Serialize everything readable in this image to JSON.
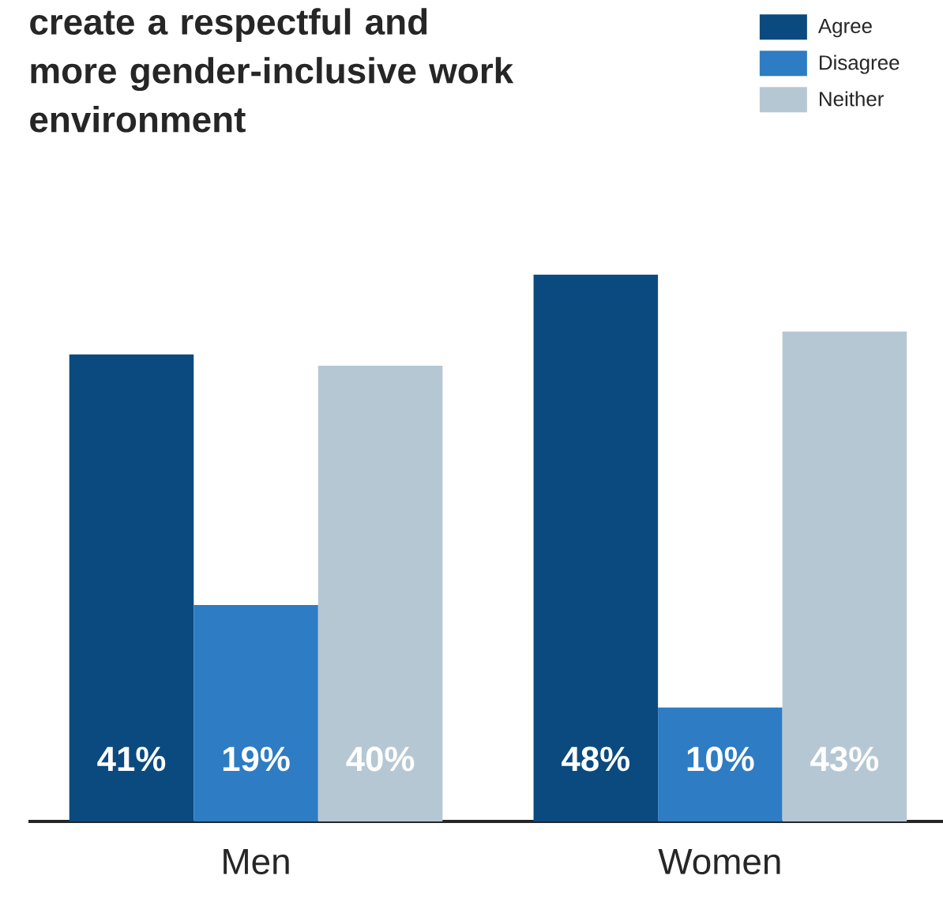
{
  "chart_data": {
    "type": "bar",
    "title": "create a respectful and more gender-inclusive work environment",
    "categories": [
      "Men",
      "Women"
    ],
    "series": [
      {
        "name": "Agree",
        "color": "#0b4a7e",
        "values": [
          41,
          48
        ],
        "value_labels": [
          "41%",
          "48%"
        ]
      },
      {
        "name": "Disagree",
        "color": "#2e7cc3",
        "values": [
          19,
          10
        ],
        "value_labels": [
          "19%",
          "10%"
        ]
      },
      {
        "name": "Neither",
        "color": "#b6c7d4",
        "values": [
          40,
          43
        ],
        "value_labels": [
          "40%",
          "43%"
        ]
      }
    ],
    "legend": "top right"
  }
}
